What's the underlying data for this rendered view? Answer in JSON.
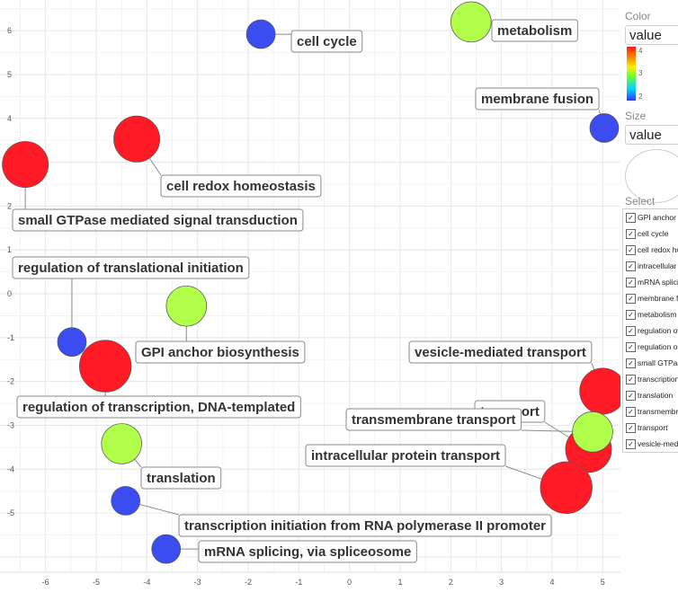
{
  "chart_data": {
    "type": "scatter",
    "title": "",
    "xlabel": "",
    "ylabel": "",
    "xlim": [
      -6.9,
      5.35
    ],
    "ylim": [
      -6.35,
      6.7
    ],
    "x_ticks": [
      -6,
      -5,
      -4,
      -3,
      -2,
      -1,
      0,
      1,
      2,
      3,
      4,
      5
    ],
    "y_ticks": [
      -5,
      -4,
      -3,
      -2,
      -1,
      0,
      1,
      2,
      3,
      4,
      5,
      6
    ],
    "grid": true,
    "color_scale": {
      "min": 2,
      "max": 4,
      "ticks": [
        2,
        3,
        4
      ]
    },
    "points": [
      {
        "term": "cell cycle",
        "x": -1.75,
        "y": 5.92,
        "value": 2.0,
        "size": 1.0
      },
      {
        "term": "metabolism",
        "x": 2.4,
        "y": 6.2,
        "value": 3.0,
        "size": 1.2
      },
      {
        "term": "membrane fusion",
        "x": 5.03,
        "y": 3.78,
        "value": 2.0,
        "size": 1.0
      },
      {
        "term": "cell redox homeostasis",
        "x": -4.2,
        "y": 3.53,
        "value": 4.0,
        "size": 1.3
      },
      {
        "term": "small GTPase mediated signal transduction",
        "x": -6.4,
        "y": 2.95,
        "value": 4.0,
        "size": 1.3
      },
      {
        "term": "regulation of translational initiation",
        "x": -5.48,
        "y": -1.1,
        "value": 2.0,
        "size": 1.0
      },
      {
        "term": "GPI anchor biosynthesis",
        "x": -3.22,
        "y": -0.28,
        "value": 3.0,
        "size": 1.2
      },
      {
        "term": "regulation of transcription, DNA-templated",
        "x": -4.82,
        "y": -1.65,
        "value": 4.0,
        "size": 1.4
      },
      {
        "term": "translation",
        "x": -4.5,
        "y": -3.42,
        "value": 3.0,
        "size": 1.2
      },
      {
        "term": "transcription initiation from RNA polymerase II promoter",
        "x": -4.42,
        "y": -4.72,
        "value": 2.0,
        "size": 1.0
      },
      {
        "term": "mRNA splicing, via spliceosome",
        "x": -3.62,
        "y": -5.82,
        "value": 2.0,
        "size": 1.0
      },
      {
        "term": "vesicle-mediated transport",
        "x": 5.0,
        "y": -2.22,
        "value": 4.0,
        "size": 1.3
      },
      {
        "term": "transport",
        "x": 4.72,
        "y": -3.55,
        "value": 4.0,
        "size": 1.3
      },
      {
        "term": "transmembrane transport",
        "x": 4.8,
        "y": -3.15,
        "value": 3.0,
        "size": 1.2
      },
      {
        "term": "intracellular protein transport",
        "x": 4.28,
        "y": -4.42,
        "value": 4.0,
        "size": 1.4
      }
    ]
  },
  "panel": {
    "color_heading": "Color",
    "color_value": "value",
    "size_heading": "Size",
    "size_value": "value",
    "select_heading": "Select",
    "select_items": [
      "GPI anchor biosynthesis",
      "cell cycle",
      "cell redox homeostasis",
      "intracellular protein transport",
      "mRNA splicing, via spliceosome",
      "membrane fusion",
      "metabolism",
      "regulation of transcription, DNA-templated",
      "regulation of translational initiation",
      "small GTPase mediated signal transduction",
      "transcription initiation from RNA polymerase II promoter",
      "translation",
      "transmembrane transport",
      "transport",
      "vesicle-mediated transport"
    ]
  }
}
